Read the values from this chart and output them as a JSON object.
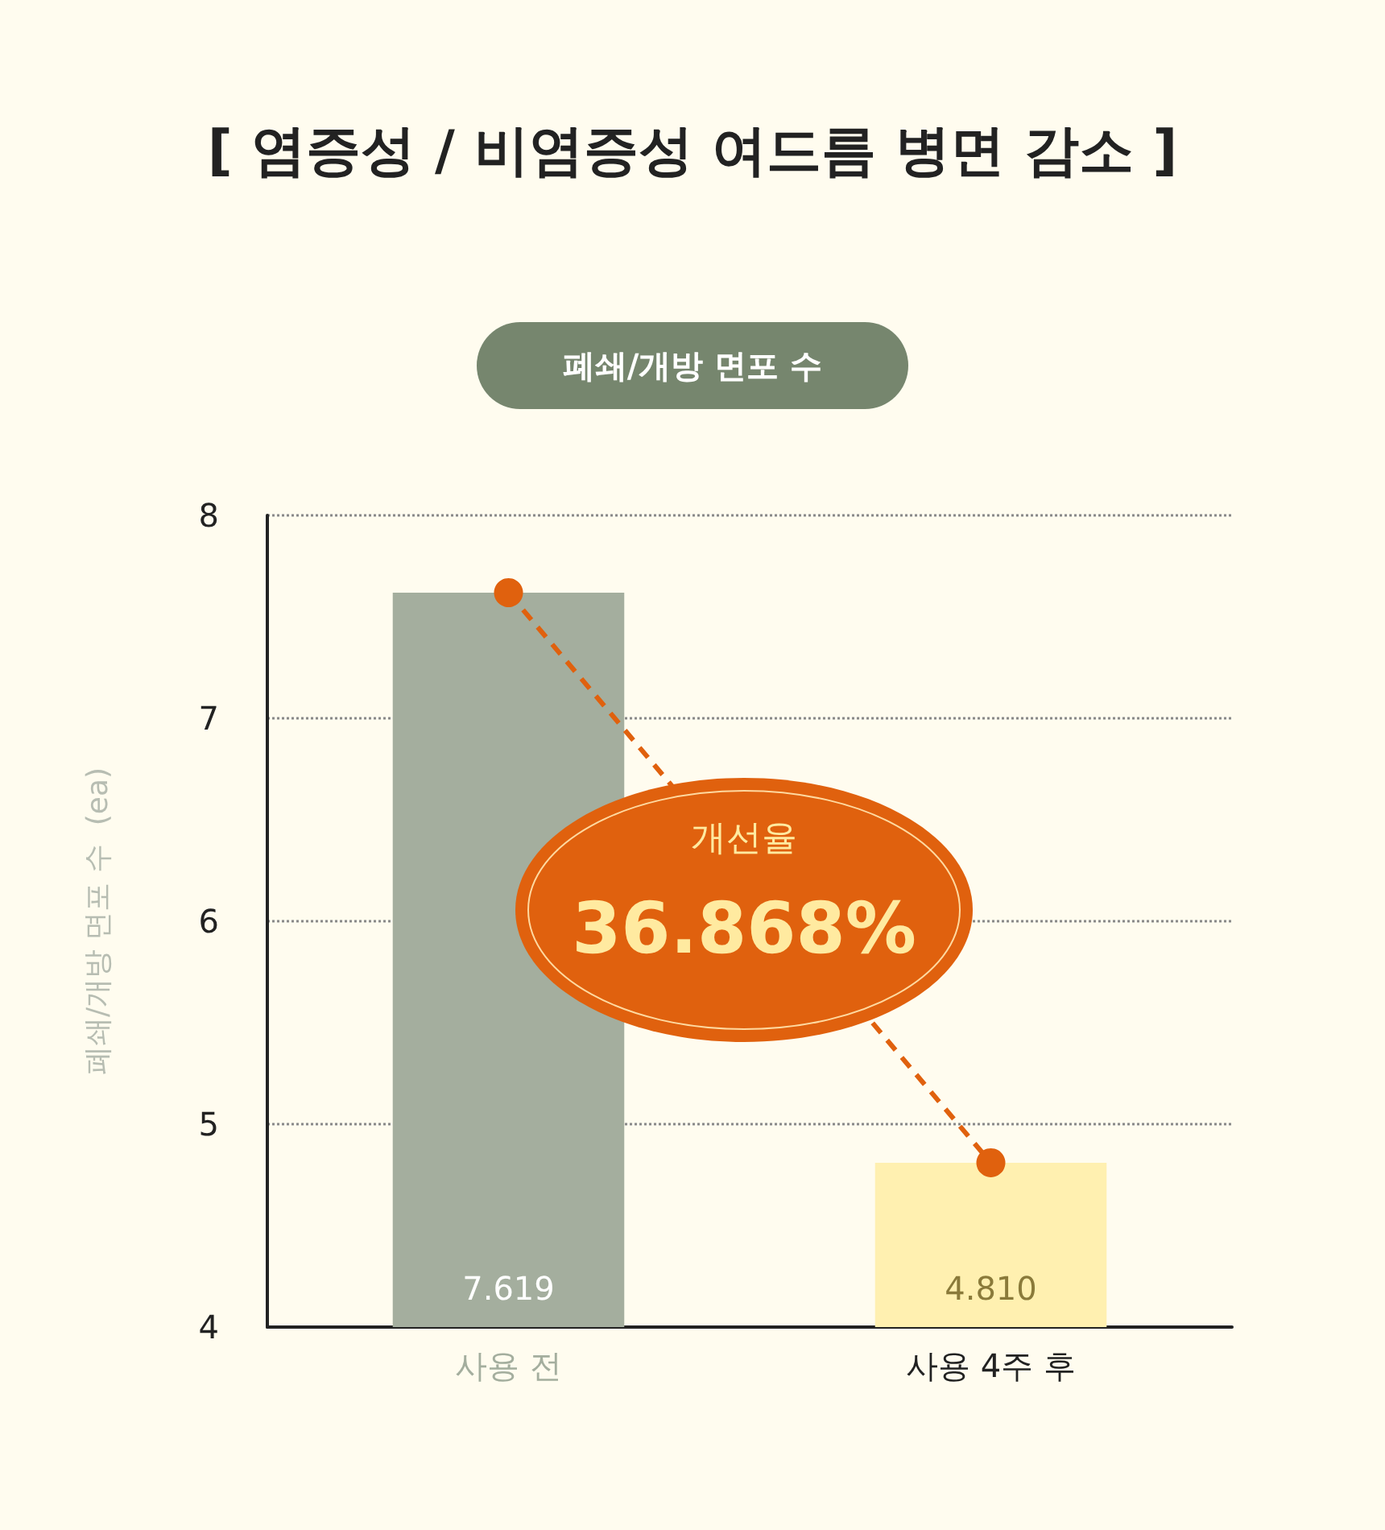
{
  "chart_data": {
    "type": "bar",
    "title": "[ 염증성 / 비염증성 여드름 병면 감소 ]",
    "subtitle": "폐쇄/개방 면포 수",
    "ylabel": "폐쇄/개방 면포 수  (ea)",
    "annotations": [
      "개선율",
      "36.868%"
    ],
    "categories": [
      "사용 전",
      "사용 4주 후"
    ],
    "series": [
      {
        "colors": [
          "#a4ae9e",
          "#fff0b0"
        ],
        "values": [
          7.619,
          4.81
        ],
        "value_labels": [
          "7.619",
          "4.810"
        ]
      },
      {
        "type": "line",
        "color": "#e0610e",
        "values": [
          7.619,
          4.81
        ],
        "marker": "circle",
        "line_style": "dashed"
      }
    ],
    "ylim": [
      4,
      8
    ],
    "yticks": [
      4,
      5,
      6,
      7,
      8
    ],
    "grid": "y"
  }
}
